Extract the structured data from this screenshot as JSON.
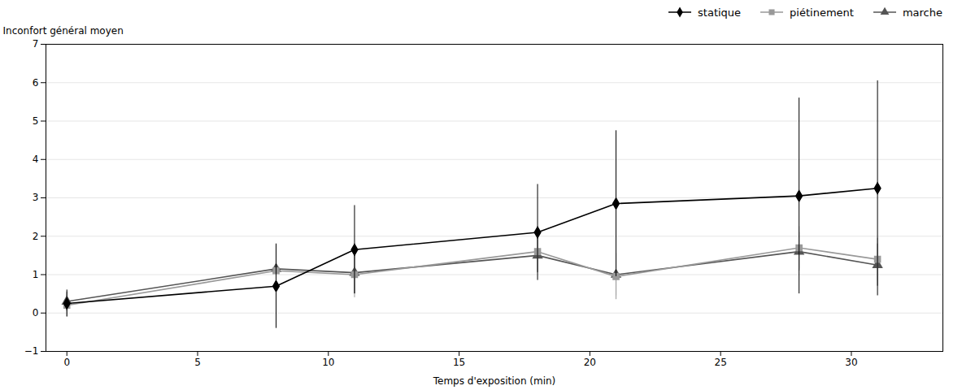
{
  "chart_data": {
    "type": "line",
    "xlabel": "Temps d'exposition (min)",
    "ylabel": "Inconfort général moyen",
    "x": [
      0,
      8,
      11,
      18,
      21,
      28,
      31
    ],
    "series": [
      {
        "name": "statique",
        "color": "#000000",
        "marker": "diamond",
        "values": [
          0.25,
          0.7,
          1.65,
          2.1,
          2.85,
          3.05,
          3.25
        ],
        "errors": [
          0.35,
          1.1,
          1.15,
          1.25,
          1.9,
          2.55,
          2.8
        ]
      },
      {
        "name": "piétinement",
        "color": "#999999",
        "marker": "square",
        "values": [
          0.2,
          1.1,
          1.0,
          1.6,
          0.95,
          1.7,
          1.4
        ],
        "errors": [
          0.3,
          0.65,
          0.6,
          0.5,
          0.6,
          0.55,
          0.55
        ]
      },
      {
        "name": "marche",
        "color": "#555555",
        "marker": "triangle",
        "values": [
          0.3,
          1.15,
          1.05,
          1.5,
          1.0,
          1.6,
          1.25
        ],
        "errors": [
          0.25,
          0.6,
          0.55,
          0.45,
          0.55,
          0.5,
          0.55
        ]
      }
    ],
    "xlim": [
      -0.8,
      33.5
    ],
    "ylim": [
      -1,
      7
    ],
    "xticks": [
      0,
      5,
      10,
      15,
      20,
      25,
      30
    ],
    "yticks": [
      -1,
      0,
      1,
      2,
      3,
      4,
      5,
      6,
      7
    ],
    "grid": true,
    "legend": "upper right"
  }
}
